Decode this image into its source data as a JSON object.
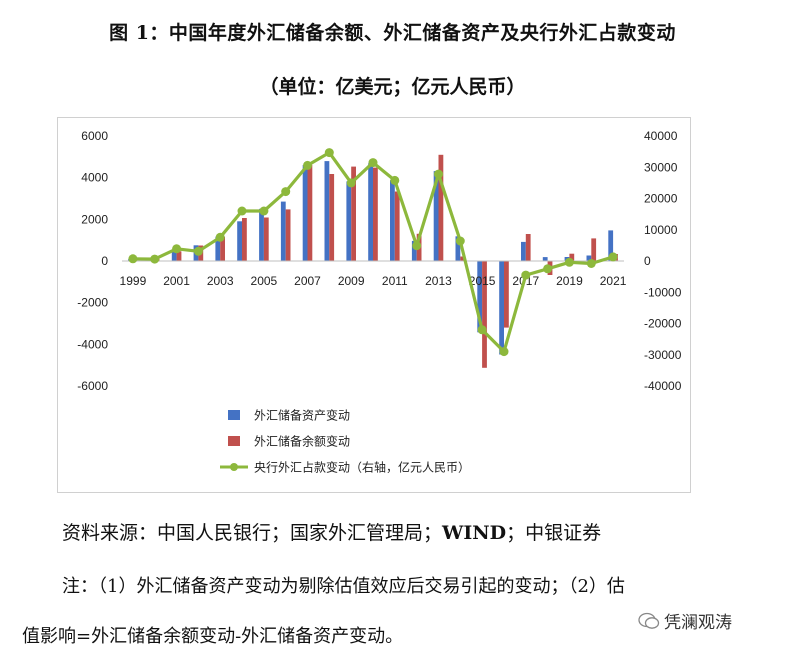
{
  "header": {
    "title": "图 1：中国年度外汇储备余额、外汇储备资产及央行外汇占款变动",
    "subtitle": "（单位：亿美元；亿元人民币）"
  },
  "footer": {
    "source_prefix": "资料来源：中国人民银行；国家外汇管理局；",
    "source_wind": "WIND",
    "source_suffix": "；中银证券",
    "note_line1": "注：（1）外汇储备资产变动为剔除估值效应后交易引起的变动；（2）估",
    "note_line2": "值影响=外汇储备余额变动-外汇储备资产变动。",
    "watermark": "凭澜观涛"
  },
  "chart_data": {
    "type": "bar",
    "categories": [
      "1999",
      "2000",
      "2001",
      "2002",
      "2003",
      "2004",
      "2005",
      "2006",
      "2007",
      "2008",
      "2009",
      "2010",
      "2011",
      "2012",
      "2013",
      "2014",
      "2015",
      "2016",
      "2017",
      "2018",
      "2019",
      "2020",
      "2021"
    ],
    "x_tick_labels": [
      "1999",
      "2001",
      "2003",
      "2005",
      "2007",
      "2009",
      "2011",
      "2013",
      "2015",
      "2017",
      "2019",
      "2021"
    ],
    "ylim": [
      -6000,
      6000
    ],
    "y_ticks": [
      "6000",
      "4000",
      "2000",
      "0",
      "-2000",
      "-4000",
      "-6000"
    ],
    "y2lim": [
      -40000,
      40000
    ],
    "y2_ticks": [
      "40000",
      "30000",
      "20000",
      "10000",
      "0",
      "-10000",
      "-20000",
      "-30000",
      "-40000"
    ],
    "series": [
      {
        "name": "外汇储备资产变动",
        "axis": "left",
        "color": "#4472C4",
        "values": [
          85,
          105,
          470,
          755,
          1170,
          1904,
          2506,
          2853,
          4607,
          4795,
          3821,
          4696,
          3878,
          966,
          4314,
          1188,
          -3423,
          -4487,
          915,
          189,
          193,
          262,
          1467
        ]
      },
      {
        "name": "外汇储备余额变动",
        "axis": "left",
        "color": "#C0504D",
        "values": [
          97,
          109,
          466,
          742,
          1168,
          2066,
          2089,
          2475,
          4619,
          4178,
          4531,
          4481,
          3338,
          1304,
          5097,
          217,
          -5127,
          -3198,
          1294,
          -672,
          352,
          1086,
          336
        ]
      },
      {
        "name": "央行外汇占款变动（右轴，亿元人民币）",
        "axis": "right",
        "type": "line",
        "color": "#8DB83C",
        "values": [
          700,
          600,
          3900,
          3100,
          7600,
          16000,
          16000,
          22200,
          30600,
          34700,
          25000,
          31500,
          25800,
          4900,
          27800,
          6400,
          -22000,
          -29000,
          -4500,
          -2500,
          -400,
          -800,
          1300
        ]
      }
    ],
    "legend_position": "bottom-left",
    "grid": false
  },
  "colors": {
    "asset_bar": "#4472C4",
    "balance_bar": "#C0504D",
    "line": "#8DB83C"
  }
}
